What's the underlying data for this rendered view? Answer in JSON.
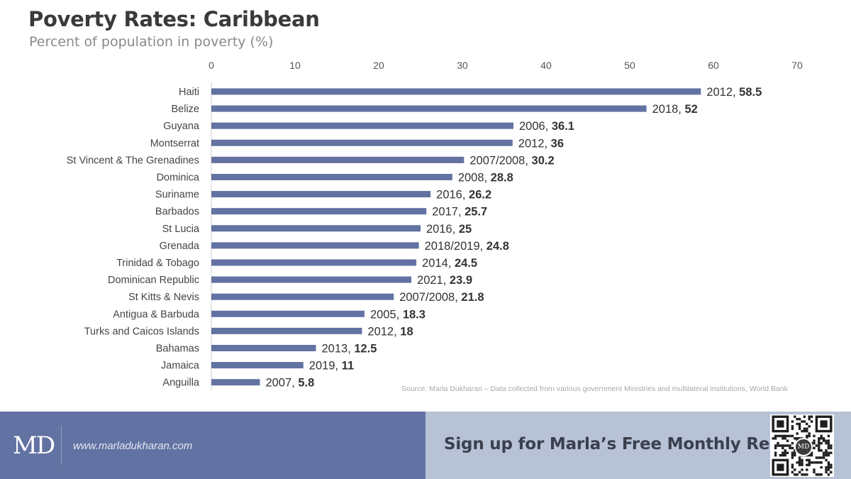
{
  "header": {
    "title": "Poverty Rates: Caribbean",
    "subtitle": "Percent of population in poverty (%)"
  },
  "chart_data": {
    "type": "bar",
    "orientation": "horizontal",
    "title": "Poverty Rates: Caribbean",
    "subtitle": "Percent of population in poverty (%)",
    "xlim": [
      0,
      70
    ],
    "x_ticks": [
      0,
      10,
      20,
      30,
      40,
      50,
      60,
      70
    ],
    "grid": false,
    "categories": [
      "Haiti",
      "Belize",
      "Guyana",
      "Montserrat",
      "St Vincent & The Grenadines",
      "Dominica",
      "Suriname",
      "Barbados",
      "St Lucia",
      "Grenada",
      "Trinidad & Tobago",
      "Dominican Republic",
      "St Kitts & Nevis",
      "Antigua & Barbuda",
      "Turks and Caicos Islands",
      "Bahamas",
      "Jamaica",
      "Anguilla"
    ],
    "values": [
      58.5,
      52,
      36.1,
      36,
      30.2,
      28.8,
      26.2,
      25.7,
      25,
      24.8,
      24.5,
      23.9,
      21.8,
      18.3,
      18,
      12.5,
      11,
      5.8
    ],
    "years": [
      "2012",
      "2018",
      "2006",
      "2012",
      "2007/2008",
      "2008",
      "2016",
      "2017",
      "2016",
      "2018/2019",
      "2014",
      "2021",
      "2007/2008",
      "2005",
      "2012",
      "2013",
      "2019",
      "2007"
    ],
    "bar_color": "#6272a2"
  },
  "source": "Source: Marla Dukharan – Data collected from various government Ministries and multilateral institutions, World Bank",
  "footer": {
    "logo": "MD",
    "website": "www.marladukharan.com",
    "cta": "Sign up for Marla’s Free Monthly Report",
    "qr_icon": "qr-code-icon",
    "qr_badge": "MD",
    "left_color": "#6272a2",
    "right_color": "#b7c2d6"
  }
}
